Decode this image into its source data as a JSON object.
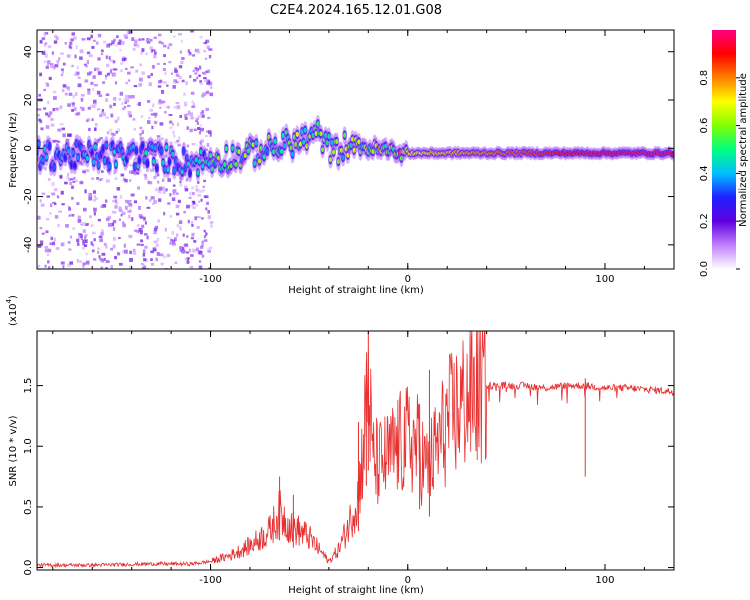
{
  "title": "C2E4.2024.165.12.01.G08",
  "chart_data": [
    {
      "type": "heatmap",
      "xlabel": "Height of straight line (km)",
      "ylabel": "Frequency (Hz)",
      "xlim": [
        -188,
        135
      ],
      "ylim": [
        -50,
        49
      ],
      "xticks": [
        -100,
        0,
        100
      ],
      "yticks": [
        -40,
        -20,
        0,
        20,
        40
      ],
      "colorbar": {
        "label": "Normalized spectral amplitude",
        "range": [
          0.0,
          1.0
        ],
        "ticks": [
          0.0,
          0.2,
          0.4,
          0.6,
          0.8
        ],
        "tick_labels": [
          "0.0",
          "0.2",
          "0.4",
          "0.6",
          "0.8"
        ],
        "colors": [
          "#ffffff",
          "#c080ff",
          "#6000e0",
          "#2020ff",
          "#00c0ff",
          "#00ff80",
          "#80ff00",
          "#ffff00",
          "#ff8000",
          "#ff0000",
          "#ff0080"
        ]
      },
      "ridge": [
        {
          "x": -188,
          "f": -3,
          "amp": 0.35
        },
        {
          "x": -160,
          "f": -3,
          "amp": 0.35
        },
        {
          "x": -130,
          "f": -3,
          "amp": 0.4
        },
        {
          "x": -110,
          "f": -6,
          "amp": 0.35
        },
        {
          "x": -100,
          "f": -5,
          "amp": 0.45
        },
        {
          "x": -85,
          "f": -3,
          "amp": 0.5
        },
        {
          "x": -70,
          "f": 0,
          "amp": 0.5
        },
        {
          "x": -55,
          "f": 3,
          "amp": 0.55
        },
        {
          "x": -45,
          "f": 6,
          "amp": 0.5
        },
        {
          "x": -38,
          "f": -2,
          "amp": 0.5
        },
        {
          "x": -30,
          "f": 2,
          "amp": 0.55
        },
        {
          "x": -20,
          "f": 0,
          "amp": 0.6
        },
        {
          "x": -10,
          "f": -1,
          "amp": 0.65
        },
        {
          "x": 0,
          "f": -2,
          "amp": 0.7
        },
        {
          "x": 20,
          "f": -2,
          "amp": 0.75
        },
        {
          "x": 40,
          "f": -2,
          "amp": 0.8
        },
        {
          "x": 60,
          "f": -2,
          "amp": 0.85
        },
        {
          "x": 80,
          "f": -2,
          "amp": 0.9
        },
        {
          "x": 100,
          "f": -2,
          "amp": 0.92
        },
        {
          "x": 120,
          "f": -2,
          "amp": 0.95
        },
        {
          "x": 135,
          "f": -2,
          "amp": 0.95
        }
      ]
    },
    {
      "type": "line",
      "xlabel": "Height of straight line (km)",
      "ylabel": "SNR (10 * v/v)",
      "scale_label": "(x10",
      "scale_exponent": "4",
      "xlim": [
        -188,
        135
      ],
      "ylim": [
        -0.02,
        1.95
      ],
      "xticks": [
        -100,
        0,
        100
      ],
      "yticks": [
        0.0,
        0.5,
        1.0,
        1.5
      ],
      "ytick_labels": [
        "0.0",
        "0.5",
        "1.0",
        "1.5"
      ],
      "color": "#e83030",
      "series": [
        {
          "x": [
            -188,
            -160,
            -130,
            -110,
            -100,
            -90,
            -80,
            -70,
            -65,
            -60,
            -55,
            -50,
            -45,
            -40,
            -35,
            -30,
            -25,
            -22,
            -20,
            -18,
            -15,
            -10,
            -5,
            0,
            5,
            10,
            15,
            20,
            30,
            40,
            50,
            60,
            70,
            80,
            90,
            100,
            110,
            120,
            135
          ],
          "y": [
            0.02,
            0.02,
            0.03,
            0.03,
            0.05,
            0.1,
            0.18,
            0.3,
            0.45,
            0.35,
            0.3,
            0.25,
            0.15,
            0.05,
            0.15,
            0.35,
            0.6,
            1.1,
            1.6,
            0.9,
            0.85,
            0.9,
            1.0,
            1.05,
            1.0,
            0.8,
            1.0,
            1.2,
            1.4,
            1.5,
            1.5,
            1.5,
            1.48,
            1.5,
            1.5,
            1.48,
            1.48,
            1.47,
            1.45
          ],
          "peaks": [
            {
              "x": -20,
              "y": 1.95
            },
            {
              "x": -21,
              "y": 1.7
            },
            {
              "x": -25,
              "y": 1.2
            },
            {
              "x": 11,
              "y": 1.63
            },
            {
              "x": 6,
              "y": 1.35
            },
            {
              "x": -65,
              "y": 0.75
            },
            {
              "x": -58,
              "y": 0.6
            },
            {
              "x": 90,
              "y": 1.56
            }
          ]
        }
      ]
    }
  ]
}
